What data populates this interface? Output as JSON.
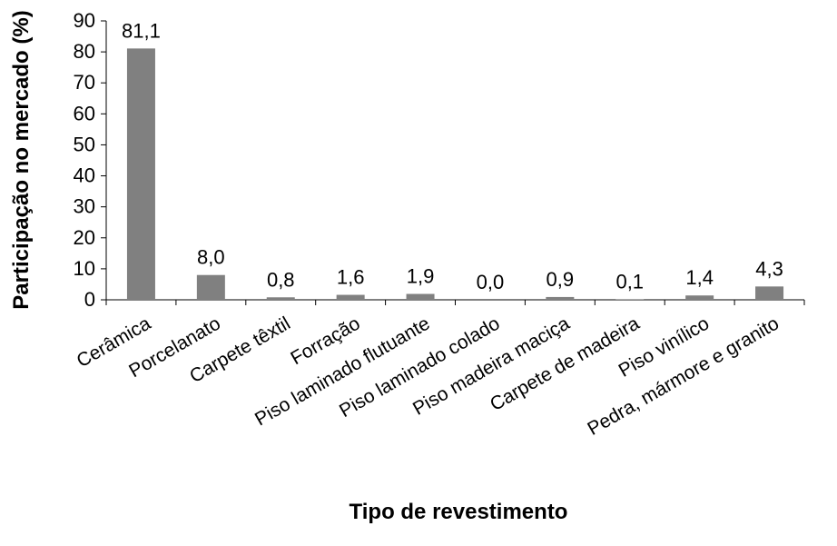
{
  "chart_data": {
    "type": "bar",
    "title": "",
    "xlabel": "Tipo de revestimento",
    "ylabel": "Participação no mercado (%)",
    "ylim": [
      0,
      90
    ],
    "yticks": [
      0,
      10,
      20,
      30,
      40,
      50,
      60,
      70,
      80,
      90
    ],
    "grid": false,
    "legend": "none",
    "bar_color": "#808080",
    "categories": [
      "Cerâmica",
      "Porcelanato",
      "Carpete têxtil",
      "Forração",
      "Piso laminado flutuante",
      "Piso laminado colado",
      "Piso madeira maciça",
      "Carpete de madeira",
      "Piso vinílico",
      "Pedra, mármore e granito"
    ],
    "values": [
      81.1,
      8.0,
      0.8,
      1.6,
      1.9,
      0.0,
      0.9,
      0.1,
      1.4,
      4.3
    ],
    "data_labels": [
      "81,1",
      "8,0",
      "0,8",
      "1,6",
      "1,9",
      "0,0",
      "0,9",
      "0,1",
      "1,4",
      "4,3"
    ]
  }
}
